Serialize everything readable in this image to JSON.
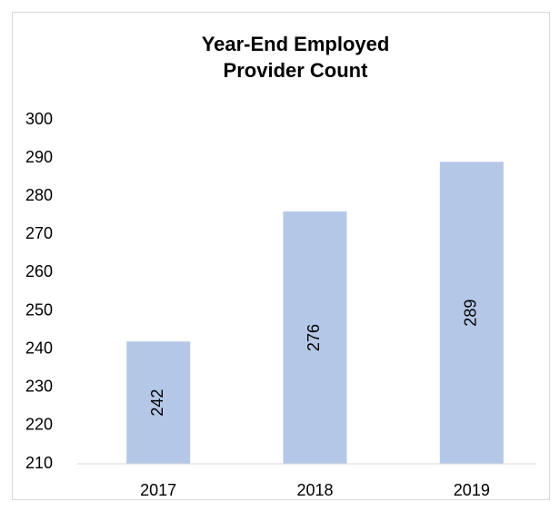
{
  "chart_data": {
    "type": "bar",
    "title": "Year-End Employed Provider Count",
    "categories": [
      "2017",
      "2018",
      "2019"
    ],
    "values": [
      242,
      276,
      289
    ],
    "color": "#b4c7e7",
    "ylim": [
      210,
      300
    ],
    "yticks": [
      210,
      220,
      230,
      240,
      250,
      260,
      270,
      280,
      290,
      300
    ],
    "grid": false
  }
}
